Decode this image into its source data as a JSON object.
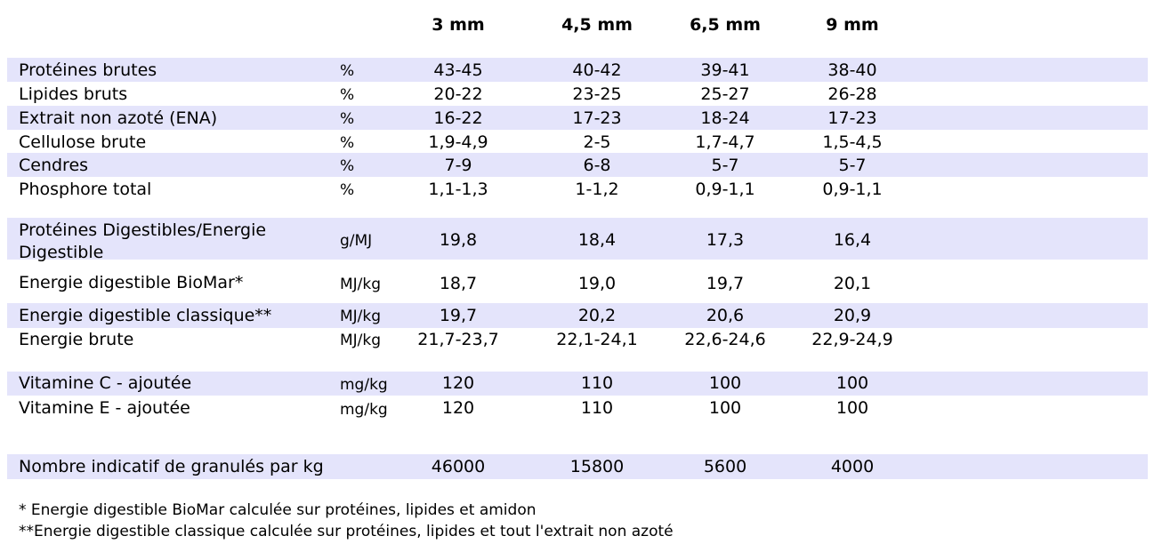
{
  "colors": {
    "band": "#e4e4fb",
    "text": "#000000"
  },
  "headers": [
    "3 mm",
    "4,5 mm",
    "6,5 mm",
    "9 mm"
  ],
  "rows": [
    {
      "label": "Protéines brutes",
      "unit": "%",
      "values": [
        "43-45",
        "40-42",
        "39-41",
        "38-40"
      ]
    },
    {
      "label": "Lipides bruts",
      "unit": "%",
      "values": [
        "20-22",
        "23-25",
        "25-27",
        "26-28"
      ]
    },
    {
      "label": "Extrait non azoté (ENA)",
      "unit": "%",
      "values": [
        "16-22",
        "17-23",
        "18-24",
        "17-23"
      ]
    },
    {
      "label": "Cellulose brute",
      "unit": "%",
      "values": [
        "1,9-4,9",
        "2-5",
        "1,7-4,7",
        "1,5-4,5"
      ]
    },
    {
      "label": "Cendres",
      "unit": "%",
      "values": [
        "7-9",
        "6-8",
        "5-7",
        "5-7"
      ]
    },
    {
      "label": "Phosphore total",
      "unit": "%",
      "values": [
        "1,1-1,3",
        "1-1,2",
        "0,9-1,1",
        "0,9-1,1"
      ]
    },
    {
      "label": "Protéines Digestibles/Energie Digestible",
      "unit": "g/MJ",
      "values": [
        "19,8",
        "18,4",
        "17,3",
        "16,4"
      ]
    },
    {
      "label": "Energie digestible BioMar*",
      "unit": "MJ/kg",
      "values": [
        "18,7",
        "19,0",
        "19,7",
        "20,1"
      ]
    },
    {
      "label": "Energie digestible classique**",
      "unit": "MJ/kg",
      "values": [
        "19,7",
        "20,2",
        "20,6",
        "20,9"
      ]
    },
    {
      "label": "Energie brute",
      "unit": "MJ/kg",
      "values": [
        "21,7-23,7",
        "22,1-24,1",
        "22,6-24,6",
        "22,9-24,9"
      ]
    },
    {
      "label": "Vitamine C - ajoutée",
      "unit": "mg/kg",
      "values": [
        "120",
        "110",
        "100",
        "100"
      ]
    },
    {
      "label": "Vitamine E - ajoutée",
      "unit": "mg/kg",
      "values": [
        "120",
        "110",
        "100",
        "100"
      ]
    },
    {
      "label": "Nombre indicatif de granulés par kg",
      "unit": "",
      "values": [
        "46000",
        "15800",
        "5600",
        "4000"
      ]
    }
  ],
  "footnotes": [
    "* Energie digestible  BioMar calculée sur protéines, lipides et amidon",
    "**Energie digestible classique calculée sur protéines, lipides et tout l'extrait non azoté"
  ]
}
